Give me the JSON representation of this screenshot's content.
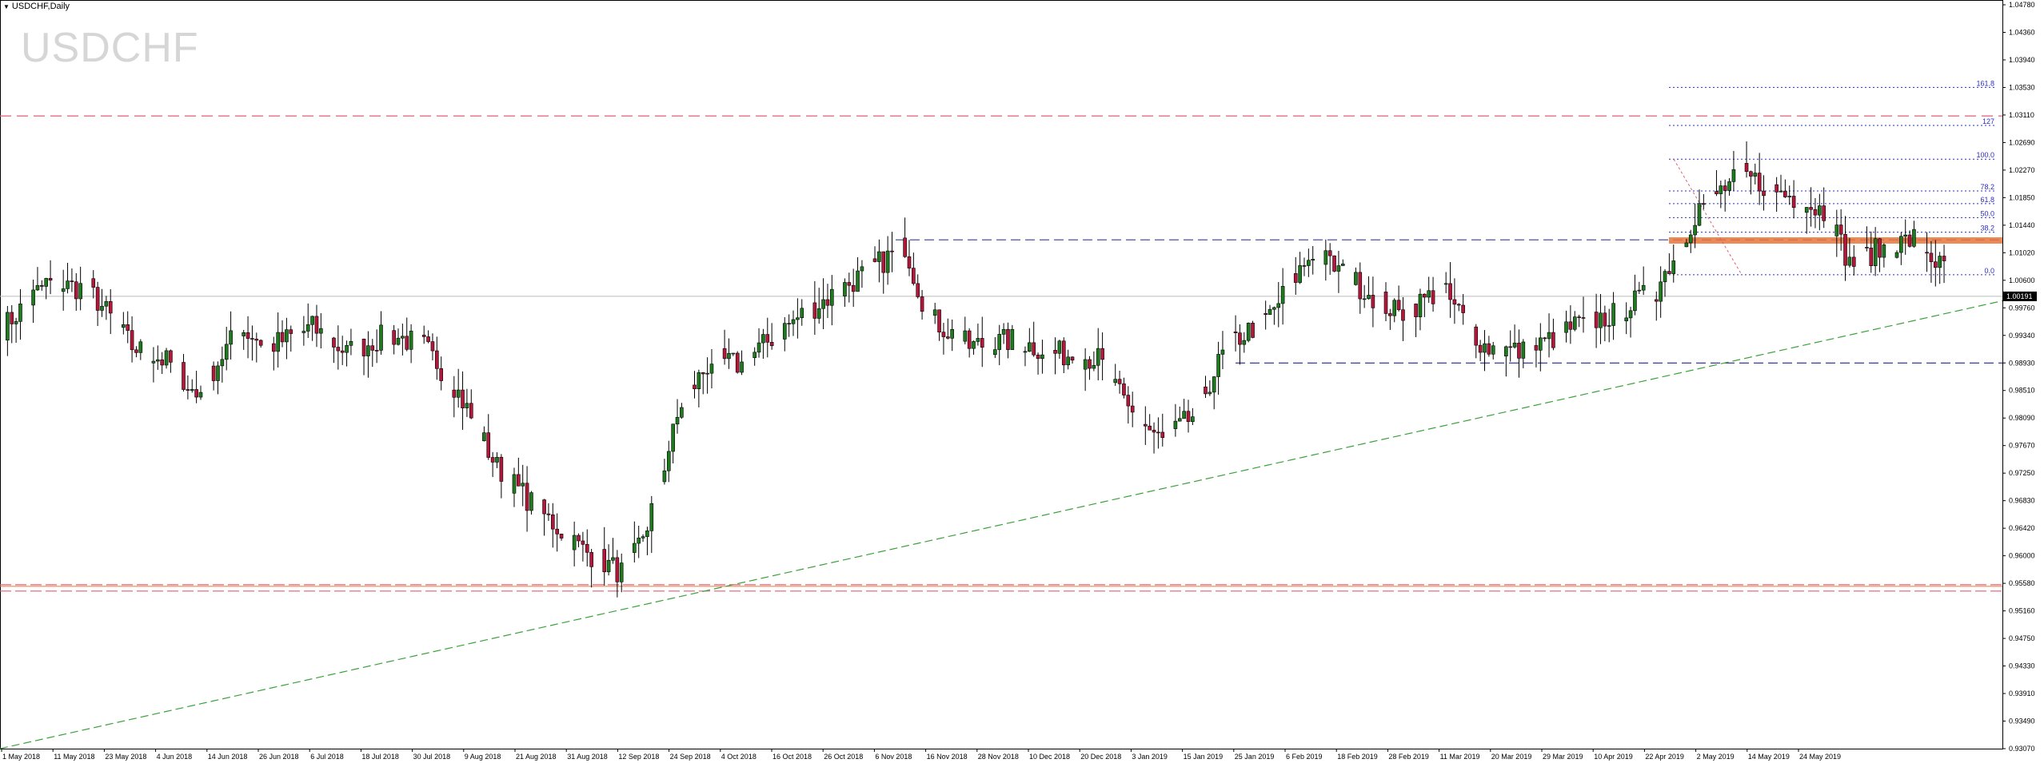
{
  "window": {
    "header_label": "USDCHF,Daily",
    "watermark": "USDCHF"
  },
  "price_axis": {
    "labels": [
      "1.04780",
      "1.04360",
      "1.03940",
      "1.03530",
      "1.03110",
      "1.02690",
      "1.02270",
      "1.01850",
      "1.01440",
      "1.01020",
      "1.00600",
      "0.99760",
      "0.99340",
      "0.98930",
      "0.98510",
      "0.98090",
      "0.97670",
      "0.97250",
      "0.96830",
      "0.96420",
      "0.96000",
      "0.95580",
      "0.95160",
      "0.94750",
      "0.94330",
      "0.93910",
      "0.93490",
      "0.93070"
    ],
    "current_price": "1.00191",
    "min": 0.9307,
    "max": 1.0478
  },
  "time_axis": {
    "labels": [
      "1 May 2018",
      "11 May 2018",
      "23 May 2018",
      "4 Jun 2018",
      "14 Jun 2018",
      "26 Jun 2018",
      "6 Jul 2018",
      "18 Jul 2018",
      "30 Jul 2018",
      "9 Aug 2018",
      "21 Aug 2018",
      "31 Aug 2018",
      "12 Sep 2018",
      "24 Sep 2018",
      "4 Oct 2018",
      "16 Oct 2018",
      "26 Oct 2018",
      "6 Nov 2018",
      "16 Nov 2018",
      "28 Nov 2018",
      "10 Dec 2018",
      "20 Dec 2018",
      "3 Jan 2019",
      "15 Jan 2019",
      "25 Jan 2019",
      "6 Feb 2019",
      "18 Feb 2019",
      "28 Feb 2019",
      "11 Mar 2019",
      "20 Mar 2019",
      "29 Mar 2019",
      "10 Apr 2019",
      "22 Apr 2019",
      "2 May 2019",
      "14 May 2019",
      "24 May 2019"
    ]
  },
  "fibonacci": {
    "levels": [
      {
        "label": "161.8",
        "price": 1.0348
      },
      {
        "label": "127",
        "price": 1.0288
      },
      {
        "label": "100.0",
        "price": 1.0235
      },
      {
        "label": "78.2",
        "price": 1.0185
      },
      {
        "label": "61.8",
        "price": 1.0165
      },
      {
        "label": "50.0",
        "price": 1.0143
      },
      {
        "label": "38.2",
        "price": 1.012
      },
      {
        "label": "0.0",
        "price": 1.0053
      }
    ]
  },
  "levels": {
    "resistance_long_dash": 1.0303,
    "blue_upper": 1.0108,
    "blue_lower": 0.9914,
    "support_band_top": 0.9565,
    "support_band_bottom": 0.9555,
    "orange_zone_top": 1.0112,
    "orange_zone_bottom": 1.0102,
    "current_line": 1.0019
  },
  "trendline": {
    "start_price": 0.9307,
    "end_price": 1.0012
  },
  "colors": {
    "bull": "#1e7b1e",
    "bear": "#b5173b",
    "resistance": "#e05d77",
    "blue_line": "#3a3aa0",
    "fib": "#2c2cc0",
    "trend": "#3aa03a",
    "orange_zone": "#e8763a"
  },
  "chart_data": {
    "type": "candlestick",
    "series_anchor_closes": [
      [
        0,
        0.997
      ],
      [
        10,
        1.004
      ],
      [
        20,
        1.003
      ],
      [
        30,
        0.994
      ],
      [
        40,
        0.991
      ],
      [
        45,
        0.986
      ],
      [
        55,
        0.997
      ],
      [
        62,
        0.994
      ],
      [
        72,
        0.997
      ],
      [
        80,
        0.993
      ],
      [
        90,
        0.996
      ],
      [
        98,
        0.994
      ],
      [
        105,
        0.988
      ],
      [
        115,
        0.975
      ],
      [
        125,
        0.968
      ],
      [
        135,
        0.962
      ],
      [
        145,
        0.958
      ],
      [
        150,
        0.966
      ],
      [
        158,
        0.985
      ],
      [
        165,
        0.992
      ],
      [
        172,
        0.991
      ],
      [
        180,
        0.996
      ],
      [
        186,
        0.999
      ],
      [
        195,
        1.003
      ],
      [
        206,
        1.008
      ],
      [
        210,
        1.01
      ],
      [
        215,
        0.999
      ],
      [
        225,
        0.994
      ],
      [
        235,
        0.995
      ],
      [
        245,
        0.993
      ],
      [
        255,
        0.992
      ],
      [
        262,
        0.984
      ],
      [
        270,
        0.979
      ],
      [
        277,
        0.983
      ],
      [
        285,
        0.994
      ],
      [
        295,
        0.999
      ],
      [
        305,
        1.009
      ],
      [
        315,
        1.004
      ],
      [
        325,
        0.999
      ],
      [
        335,
        1.003
      ],
      [
        345,
        0.994
      ],
      [
        355,
        0.993
      ],
      [
        365,
        0.997
      ],
      [
        375,
        0.999
      ],
      [
        385,
        1.003
      ],
      [
        395,
        1.016
      ],
      [
        405,
        1.021
      ],
      [
        415,
        1.018
      ],
      [
        425,
        1.015
      ],
      [
        430,
        1.007
      ],
      [
        436,
        1.009
      ],
      [
        445,
        1.011
      ],
      [
        452,
        1.006
      ],
      [
        460,
        1.002
      ]
    ]
  }
}
